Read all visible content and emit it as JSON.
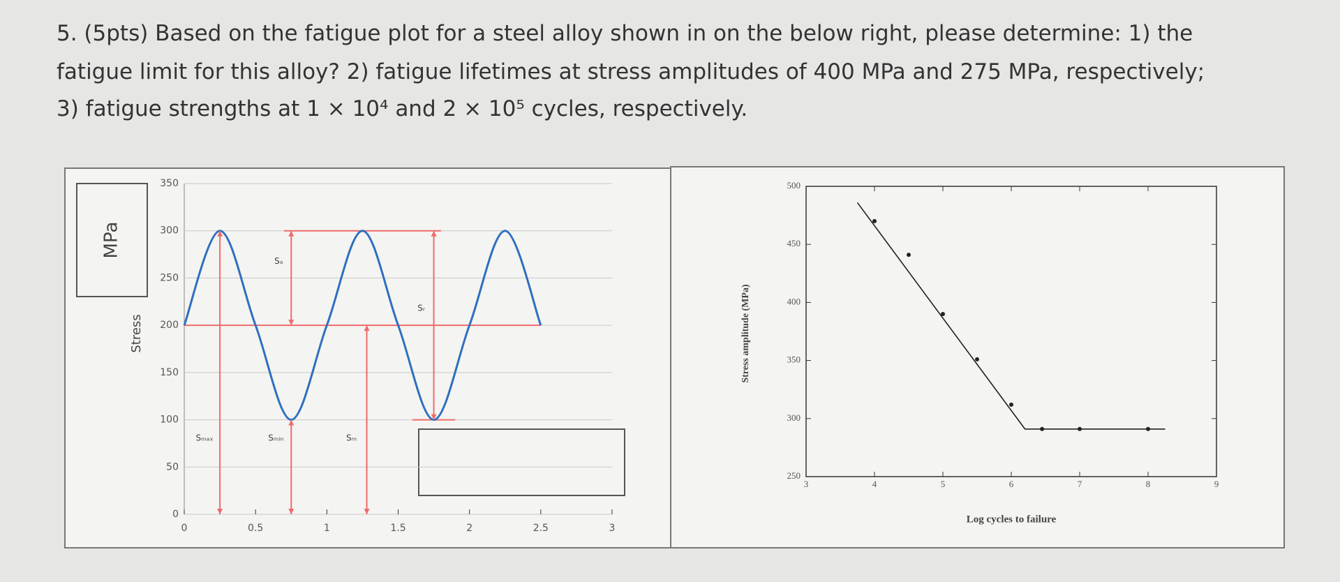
{
  "question": {
    "lines": [
      "5. (5pts) Based on the fatigue plot for a steel alloy shown in on the below right, please determine: 1) the",
      "fatigue limit for this alloy? 2) fatigue lifetimes at stress amplitudes of 400 MPa and 275 MPa, respectively;",
      "3) fatigue strengths at 1 × 10⁴ and 2 × 10⁵ cycles, respectively."
    ]
  },
  "chart_data": [
    {
      "type": "line",
      "unit_box": "MPa",
      "ylabel": "Stress",
      "xlim": [
        0,
        3
      ],
      "ylim": [
        0,
        350
      ],
      "xticks": [
        0,
        0.5,
        1,
        1.5,
        2,
        2.5,
        3
      ],
      "yticks": [
        0,
        50,
        100,
        150,
        200,
        250,
        300,
        350
      ],
      "grid": true,
      "smooth": true,
      "frame": false,
      "series": [
        {
          "color": "#2f6fbf",
          "x": [
            0,
            0.25,
            0.5,
            0.75,
            1,
            1.25,
            1.5,
            1.75,
            2,
            2.25,
            2.5
          ],
          "values": [
            200,
            300,
            200,
            100,
            200,
            300,
            200,
            100,
            200,
            300,
            200
          ]
        }
      ],
      "reference_lines": [
        {
          "y": 200,
          "x": [
            0,
            2.5
          ]
        },
        {
          "y": 300,
          "x": [
            0.7,
            1.8
          ]
        },
        {
          "y": 100,
          "x": [
            1.6,
            1.9
          ]
        }
      ],
      "arrows": [
        {
          "label": "Sₘₐₓ",
          "x": 0.25,
          "y": [
            0,
            300
          ]
        },
        {
          "label": "Sₘᵢₙ",
          "x": 0.75,
          "y": [
            0,
            100
          ]
        },
        {
          "label": "Sₘ",
          "x": 1.28,
          "y": [
            0,
            200
          ]
        },
        {
          "label": "Sₐ",
          "x": 0.75,
          "y": [
            300,
            200
          ]
        },
        {
          "label": "Sᵣ",
          "x": 1.75,
          "y": [
            300,
            100
          ]
        }
      ],
      "ref_color": "#ef6b6b"
    },
    {
      "type": "line",
      "ylabel": "Stress amplitude (MPa)",
      "xlabel": "Log cycles to failure",
      "xlim": [
        3,
        9
      ],
      "ylim": [
        250,
        500
      ],
      "xticks": [
        3,
        4,
        5,
        6,
        7,
        8,
        9
      ],
      "yticks": [
        250,
        300,
        350,
        400,
        450,
        500
      ],
      "grid": false,
      "smooth": false,
      "frame": true,
      "series": [
        {
          "color": "#222222",
          "x": [
            3.75,
            6.2,
            8.25
          ],
          "values": [
            486,
            291,
            291
          ]
        },
        {
          "color": "#222222",
          "markers": true,
          "x": [
            4,
            4.5,
            5,
            5.5,
            6,
            6.45,
            7,
            8
          ],
          "values": [
            470,
            441,
            390,
            351,
            312,
            291,
            291,
            291
          ]
        }
      ]
    }
  ]
}
